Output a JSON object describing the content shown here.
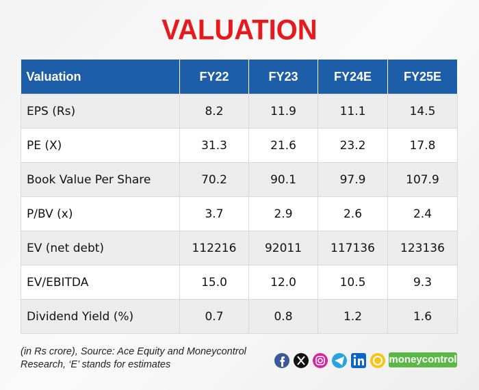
{
  "title": "VALUATION",
  "table": {
    "header": [
      "Valuation",
      "FY22",
      "FY23",
      "FY24E",
      "FY25E"
    ],
    "rows": [
      [
        "EPS (Rs)",
        "8.2",
        "11.9",
        "11.1",
        "14.5"
      ],
      [
        "PE (X)",
        "31.3",
        "21.6",
        "23.2",
        "17.8"
      ],
      [
        "Book Value Per Share",
        "70.2",
        "90.1",
        "97.9",
        "107.9"
      ],
      [
        "P/BV (x)",
        "3.7",
        "2.9",
        "2.6",
        "2.4"
      ],
      [
        "EV (net debt)",
        "112216",
        "92011",
        "117136",
        "123136"
      ],
      [
        "EV/EBITDA",
        "15.0",
        "12.0",
        "10.5",
        "9.3"
      ],
      [
        "Dividend Yield (%)",
        "0.7",
        "0.8",
        "1.2",
        "1.6"
      ]
    ]
  },
  "footer": {
    "source": [
      "(in Rs crore), Source: Ace Equity and Moneycontrol",
      "Research, ‘E’ stands for estimates"
    ],
    "brand": "moneycontrol"
  }
}
